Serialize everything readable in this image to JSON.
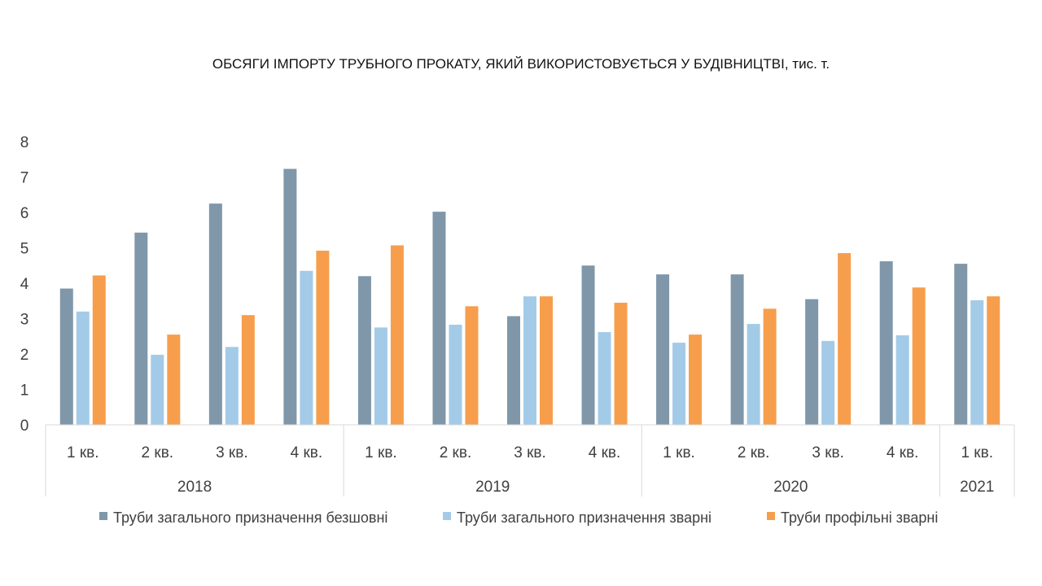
{
  "chart_data": {
    "type": "bar",
    "title": "ОБСЯГИ ІМПОРТУ ТРУБНОГО ПРОКАТУ, ЯКИЙ ВИКОРИСТОВУЄТЬСЯ У БУДІВНИЦТВІ, тис. т.",
    "xlabel": "",
    "ylabel": "",
    "ylim": [
      0,
      8
    ],
    "yticks": [
      0,
      1,
      2,
      3,
      4,
      5,
      6,
      7,
      8
    ],
    "grid": false,
    "legend_position": "bottom",
    "categories": [
      "1 кв.",
      "2 кв.",
      "3 кв.",
      "4 кв.",
      "1 кв.",
      "2 кв.",
      "3 кв.",
      "4 кв.",
      "1 кв.",
      "2 кв.",
      "3 кв.",
      "4 кв.",
      "1 кв."
    ],
    "groups": [
      {
        "label": "2018",
        "count": 4
      },
      {
        "label": "2019",
        "count": 4
      },
      {
        "label": "2020",
        "count": 4
      },
      {
        "label": "2021",
        "count": 1
      }
    ],
    "series": [
      {
        "name": "Труби загального призначення безшовні",
        "color": "#7f97a9",
        "values": [
          3.85,
          5.43,
          6.25,
          7.23,
          4.2,
          6.02,
          3.07,
          4.5,
          4.25,
          4.25,
          3.55,
          4.62,
          4.55
        ]
      },
      {
        "name": "Труби загального призначення зварні",
        "color": "#a3cbe8",
        "values": [
          3.2,
          1.98,
          2.2,
          4.35,
          2.75,
          2.83,
          3.63,
          2.62,
          2.32,
          2.85,
          2.37,
          2.53,
          3.52
        ]
      },
      {
        "name": "Труби профільні зварні",
        "color": "#f79e4c",
        "values": [
          4.22,
          2.55,
          3.1,
          4.92,
          5.07,
          3.35,
          3.63,
          3.45,
          2.55,
          3.28,
          4.85,
          3.88,
          3.63
        ]
      }
    ]
  }
}
